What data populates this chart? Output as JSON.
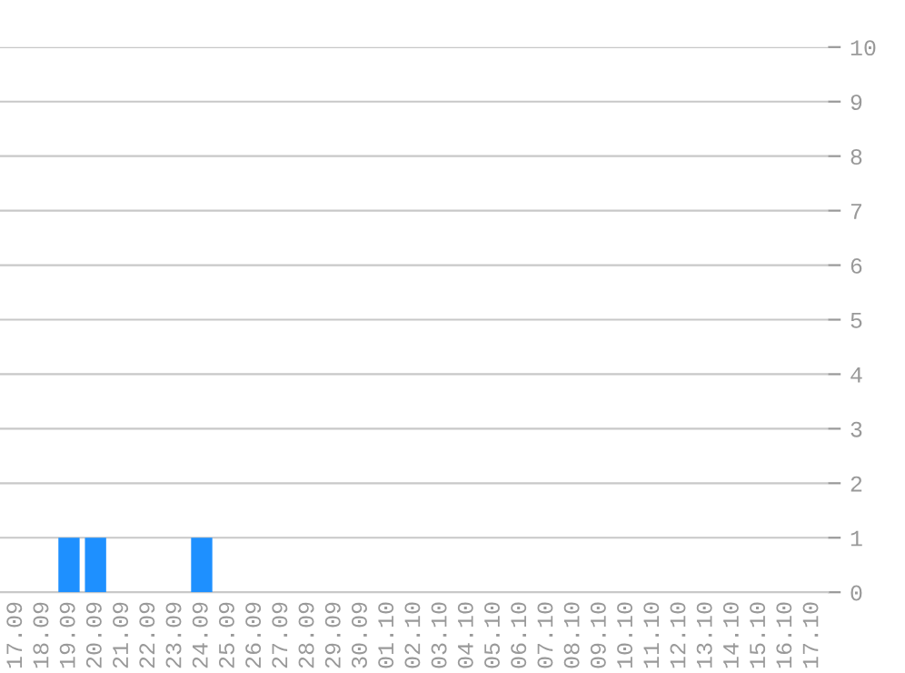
{
  "chart_data": {
    "type": "bar",
    "categories": [
      "17.09",
      "18.09",
      "19.09",
      "20.09",
      "21.09",
      "22.09",
      "23.09",
      "24.09",
      "25.09",
      "26.09",
      "27.09",
      "28.09",
      "29.09",
      "30.09",
      "01.10",
      "02.10",
      "03.10",
      "04.10",
      "05.10",
      "06.10",
      "07.10",
      "08.10",
      "09.10",
      "10.10",
      "11.10",
      "12.10",
      "13.10",
      "14.10",
      "15.10",
      "16.10",
      "17.10"
    ],
    "values": [
      0,
      0,
      1,
      1,
      0,
      0,
      0,
      1,
      0,
      0,
      0,
      0,
      0,
      0,
      0,
      0,
      0,
      0,
      0,
      0,
      0,
      0,
      0,
      0,
      0,
      0,
      0,
      0,
      0,
      0,
      0
    ],
    "color": "#1e90ff",
    "ylim": [
      0,
      10
    ],
    "yticks": [
      0,
      1,
      2,
      3,
      4,
      5,
      6,
      7,
      8,
      9,
      10
    ],
    "grid": "y"
  }
}
